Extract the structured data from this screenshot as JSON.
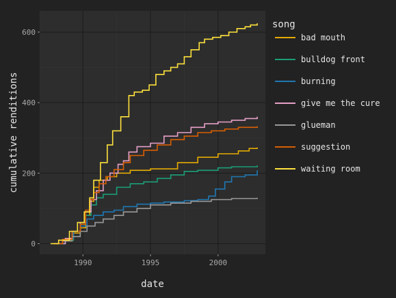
{
  "chart_data": {
    "type": "line",
    "title": "",
    "xlabel": "date",
    "ylabel": "cumulative renditions",
    "xlim": [
      1986.8,
      2003.5
    ],
    "ylim": [
      -30,
      660
    ],
    "x_ticks": [
      {
        "value": 1990,
        "label": "1990"
      },
      {
        "value": 1995,
        "label": "1995"
      },
      {
        "value": 2000,
        "label": "2000"
      }
    ],
    "y_ticks": [
      {
        "value": 0,
        "label": "0"
      },
      {
        "value": 200,
        "label": "200"
      },
      {
        "value": 400,
        "label": "400"
      },
      {
        "value": 600,
        "label": "600"
      }
    ],
    "grid": true,
    "legend": {
      "title": "song",
      "position": "right"
    },
    "series": [
      {
        "name": "bad mouth",
        "color": "#E6AB02",
        "points": [
          [
            1987.8,
            0
          ],
          [
            1988.5,
            8
          ],
          [
            1989.2,
            30
          ],
          [
            1989.8,
            45
          ],
          [
            1990.2,
            80
          ],
          [
            1990.5,
            120
          ],
          [
            1990.8,
            160
          ],
          [
            1991.2,
            180
          ],
          [
            1991.8,
            190
          ],
          [
            1992.5,
            200
          ],
          [
            1993.5,
            208
          ],
          [
            1995,
            212
          ],
          [
            1997,
            230
          ],
          [
            1998.5,
            245
          ],
          [
            2000,
            255
          ],
          [
            2001.5,
            263
          ],
          [
            2002.3,
            270
          ],
          [
            2002.9,
            273
          ]
        ]
      },
      {
        "name": "bulldog front",
        "color": "#1B9E77",
        "points": [
          [
            1988.3,
            0
          ],
          [
            1988.7,
            10
          ],
          [
            1989.3,
            35
          ],
          [
            1989.8,
            55
          ],
          [
            1990.2,
            80
          ],
          [
            1990.6,
            110
          ],
          [
            1991,
            130
          ],
          [
            1991.5,
            140
          ],
          [
            1992.5,
            160
          ],
          [
            1993.5,
            170
          ],
          [
            1994.5,
            175
          ],
          [
            1995.5,
            185
          ],
          [
            1996.5,
            195
          ],
          [
            1997.5,
            205
          ],
          [
            1998.5,
            208
          ],
          [
            2000,
            215
          ],
          [
            2001,
            218
          ],
          [
            2002.9,
            222
          ]
        ]
      },
      {
        "name": "burning",
        "color": "#1F78B4",
        "points": [
          [
            1988.2,
            0
          ],
          [
            1988.7,
            15
          ],
          [
            1989.3,
            35
          ],
          [
            1989.8,
            50
          ],
          [
            1990.3,
            70
          ],
          [
            1990.8,
            80
          ],
          [
            1991.5,
            90
          ],
          [
            1992.3,
            95
          ],
          [
            1993,
            105
          ],
          [
            1994,
            112
          ],
          [
            1995,
            115
          ],
          [
            1996,
            118
          ],
          [
            1997.5,
            122
          ],
          [
            1998.5,
            125
          ],
          [
            1999.3,
            135
          ],
          [
            1999.8,
            155
          ],
          [
            2000.5,
            175
          ],
          [
            2001,
            190
          ],
          [
            2002,
            195
          ],
          [
            2002.9,
            208
          ]
        ]
      },
      {
        "name": "give me the cure",
        "color": "#E7A0C8",
        "points": [
          [
            1988,
            0
          ],
          [
            1988.7,
            15
          ],
          [
            1989.2,
            35
          ],
          [
            1989.8,
            60
          ],
          [
            1990.2,
            90
          ],
          [
            1990.6,
            125
          ],
          [
            1991,
            150
          ],
          [
            1991.5,
            180
          ],
          [
            1992,
            200
          ],
          [
            1992.6,
            225
          ],
          [
            1993,
            235
          ],
          [
            1993.4,
            260
          ],
          [
            1994,
            275
          ],
          [
            1995,
            285
          ],
          [
            1996,
            305
          ],
          [
            1997,
            315
          ],
          [
            1998,
            330
          ],
          [
            1999,
            340
          ],
          [
            2000,
            345
          ],
          [
            2001,
            350
          ],
          [
            2002,
            355
          ],
          [
            2002.9,
            360
          ]
        ]
      },
      {
        "name": "glueman",
        "color": "#9A9A9A",
        "points": [
          [
            1987.9,
            0
          ],
          [
            1988.5,
            8
          ],
          [
            1989.2,
            20
          ],
          [
            1989.8,
            35
          ],
          [
            1990.3,
            50
          ],
          [
            1990.9,
            60
          ],
          [
            1991.5,
            70
          ],
          [
            1992.3,
            80
          ],
          [
            1993,
            90
          ],
          [
            1994,
            100
          ],
          [
            1995,
            110
          ],
          [
            1996.5,
            115
          ],
          [
            1998,
            120
          ],
          [
            1999.5,
            125
          ],
          [
            2001,
            128
          ],
          [
            2002.9,
            130
          ]
        ]
      },
      {
        "name": "suggestion",
        "color": "#D95F02",
        "points": [
          [
            1987.8,
            0
          ],
          [
            1988.5,
            12
          ],
          [
            1989.2,
            35
          ],
          [
            1989.8,
            55
          ],
          [
            1990.2,
            95
          ],
          [
            1990.5,
            125
          ],
          [
            1990.8,
            145
          ],
          [
            1991.2,
            170
          ],
          [
            1991.7,
            190
          ],
          [
            1992.3,
            210
          ],
          [
            1993,
            230
          ],
          [
            1993.5,
            250
          ],
          [
            1994.5,
            265
          ],
          [
            1995.5,
            280
          ],
          [
            1996.5,
            295
          ],
          [
            1997.5,
            305
          ],
          [
            1998.5,
            315
          ],
          [
            1999.5,
            320
          ],
          [
            2000.5,
            325
          ],
          [
            2001.5,
            330
          ],
          [
            2002.9,
            333
          ]
        ]
      },
      {
        "name": "waiting room",
        "color": "#FFE23C",
        "points": [
          [
            1987.6,
            0
          ],
          [
            1988.2,
            10
          ],
          [
            1989,
            35
          ],
          [
            1989.6,
            60
          ],
          [
            1990.1,
            90
          ],
          [
            1990.5,
            130
          ],
          [
            1990.8,
            180
          ],
          [
            1991.3,
            230
          ],
          [
            1991.8,
            280
          ],
          [
            1992.2,
            320
          ],
          [
            1992.8,
            360
          ],
          [
            1993.4,
            420
          ],
          [
            1993.8,
            430
          ],
          [
            1994.4,
            435
          ],
          [
            1994.9,
            450
          ],
          [
            1995.4,
            480
          ],
          [
            1996,
            490
          ],
          [
            1996.5,
            500
          ],
          [
            1997,
            510
          ],
          [
            1997.5,
            530
          ],
          [
            1998,
            550
          ],
          [
            1998.6,
            570
          ],
          [
            1999,
            580
          ],
          [
            1999.6,
            585
          ],
          [
            2000.2,
            590
          ],
          [
            2000.8,
            600
          ],
          [
            2001.4,
            610
          ],
          [
            2002,
            615
          ],
          [
            2002.4,
            620
          ],
          [
            2002.9,
            625
          ]
        ]
      }
    ]
  }
}
